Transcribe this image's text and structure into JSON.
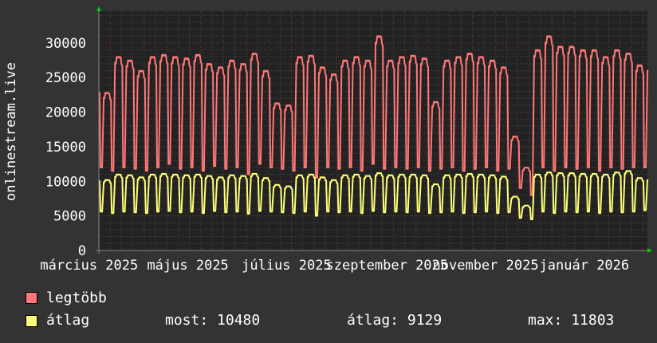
{
  "chart_data": {
    "type": "line",
    "ylabel": "onlinestream.live",
    "ylim": [
      0,
      34600
    ],
    "yticks": [
      0,
      5000,
      10000,
      15000,
      20000,
      25000,
      30000
    ],
    "ytick_labels": [
      "0",
      "5000",
      "10000",
      "15000",
      "20000",
      "25000",
      "30000"
    ],
    "xlim": [
      "2025-03-07",
      "2026-02-09"
    ],
    "xtick_labels": [
      {
        "date": "2025-03-01",
        "label": "március 2025"
      },
      {
        "date": "2025-05-01",
        "label": "május 2025"
      },
      {
        "date": "2025-07-01",
        "label": "július 2025"
      },
      {
        "date": "2025-09-01",
        "label": "szeptember 2025"
      },
      {
        "date": "2025-11-01",
        "label": "november 2025"
      },
      {
        "date": "2026-01-01",
        "label": "január 2026"
      }
    ],
    "grid": true,
    "legend_placement": "bottom-left",
    "series": [
      {
        "name": "legtöbb",
        "color": "#ff7777",
        "weekday_peak": [
          23800,
          22800,
          28000,
          27500,
          26000,
          28000,
          28300,
          28000,
          27800,
          28300,
          27000,
          26500,
          27500,
          27000,
          28500,
          26000,
          21300,
          21000,
          28000,
          28200,
          26500,
          25500,
          27500,
          28000,
          27500,
          31000,
          27500,
          28000,
          28200,
          27800,
          21500,
          27500,
          28000,
          28500,
          28000,
          27500,
          26500,
          16500,
          12000,
          29000,
          31000,
          29500,
          29500,
          29000,
          29000,
          28000,
          29000,
          28500,
          26800
        ],
        "weekend_low": [
          12000,
          11500,
          12000,
          11800,
          11500,
          12000,
          12500,
          11800,
          12000,
          11500,
          12200,
          11800,
          12000,
          11000,
          12500,
          12000,
          11800,
          11500,
          12000,
          10500,
          12000,
          11800,
          12000,
          11500,
          12500,
          11800,
          12000,
          11800,
          12000,
          11500,
          11800,
          12000,
          11500,
          11800,
          12000,
          11500,
          11800,
          9000,
          8000,
          12000,
          11500,
          12000,
          11800,
          12000,
          11500,
          12000,
          11800,
          12000,
          12000
        ]
      },
      {
        "name": "átlag",
        "color": "#ffff77",
        "weekday_peak": [
          10500,
          10200,
          11000,
          10900,
          10600,
          11000,
          11100,
          11000,
          10900,
          11000,
          10800,
          10600,
          10900,
          10800,
          11100,
          10500,
          9500,
          9300,
          10900,
          11000,
          10600,
          10200,
          10900,
          11000,
          10800,
          11200,
          10900,
          11000,
          11000,
          10900,
          9600,
          10900,
          11000,
          11100,
          11000,
          10900,
          10700,
          7800,
          6500,
          11000,
          11300,
          11200,
          11200,
          11100,
          11100,
          11000,
          11300,
          11500,
          10500
        ],
        "weekend_low": [
          5600,
          5400,
          5600,
          5500,
          5400,
          5600,
          5700,
          5500,
          5600,
          5400,
          5700,
          5500,
          5600,
          5300,
          5700,
          5600,
          5500,
          5400,
          5600,
          5000,
          5600,
          5500,
          5600,
          5400,
          5700,
          5500,
          5600,
          5500,
          5600,
          5400,
          5500,
          5600,
          5400,
          5500,
          5600,
          5400,
          5500,
          4700,
          4500,
          5600,
          5400,
          5600,
          5500,
          5600,
          5400,
          5600,
          5500,
          5600,
          5800
        ]
      }
    ],
    "stats": {
      "most_label": "most:",
      "most": "10480",
      "atlag_label": "átlag:",
      "atlag": "9129",
      "max_label": "max:",
      "max": "11803"
    }
  }
}
